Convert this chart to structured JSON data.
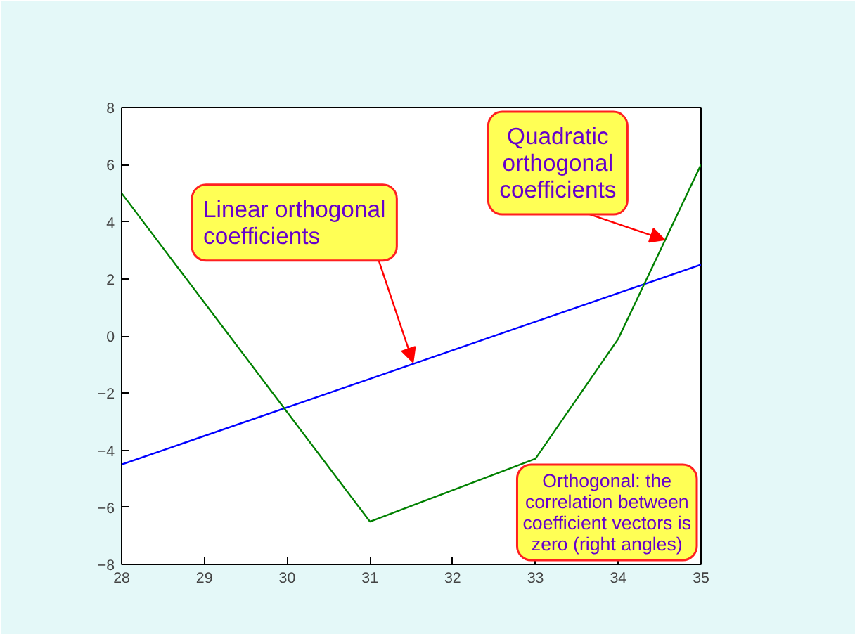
{
  "chart_data": {
    "type": "line",
    "x": [
      28,
      31,
      33,
      34,
      35
    ],
    "series": [
      {
        "color": "#0000ff",
        "x": [
          28,
          35
        ],
        "values": [
          -4.5,
          2.5
        ]
      },
      {
        "color": "#008000",
        "values": [
          5,
          -6.5,
          -4.3,
          -0.1,
          6
        ]
      }
    ],
    "xlim": [
      28,
      35
    ],
    "ylim": [
      -8,
      8
    ],
    "xticks": [
      28,
      29,
      30,
      31,
      32,
      33,
      34,
      35
    ],
    "yticks": [
      -8,
      -6,
      -4,
      -2,
      0,
      2,
      4,
      6,
      8
    ],
    "grid": false,
    "marker": "none",
    "line_style": "solid",
    "annotations": [
      {
        "text": "Linear orthogonal\ncoefficients",
        "x": 31.52,
        "y": -0.92
      },
      {
        "text": "Quadratic\northogonal\ncoefficients",
        "x": 34.56,
        "y": 3.37
      },
      "Orthogonal: the\ncorrelation between\ncoefficient vectors is\nzero (right angles)"
    ]
  }
}
